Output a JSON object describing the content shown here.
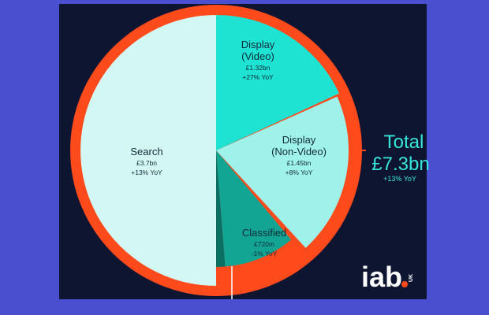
{
  "chart_data": {
    "type": "pie",
    "slices": [
      {
        "name": "Search",
        "lines": [
          "Search"
        ],
        "value_label": "£3.7bn",
        "yoy": "+13% YoY",
        "value": 3.7,
        "color": "#d3f8f4"
      },
      {
        "name": "Display (Video)",
        "lines": [
          "Display",
          "(Video)"
        ],
        "value_label": "£1.32bn",
        "yoy": "+27% YoY",
        "value": 1.32,
        "color": "#1ee3d3"
      },
      {
        "name": "Display (Non-Video)",
        "lines": [
          "Display",
          "(Non-Video)"
        ],
        "value_label": "£1.45bn",
        "yoy": "+8% YoY",
        "value": 1.45,
        "color": "#9ff2ea"
      },
      {
        "name": "Classified",
        "lines": [
          "Classified"
        ],
        "value_label": "£720m",
        "yoy": "-1% YoY",
        "value": 0.72,
        "color": "#13a593"
      }
    ],
    "total": {
      "label": "Total",
      "value_label": "£7.3bn",
      "yoy": "+13% YoY",
      "value": 7.3
    },
    "colors": {
      "ring": "#ff4a1c",
      "background": "#0e1530",
      "page": "#4a4fd0",
      "accent": "#36e6da",
      "other": "#0b6f64"
    }
  },
  "logo": {
    "text": "iab",
    "sub": "UK"
  }
}
